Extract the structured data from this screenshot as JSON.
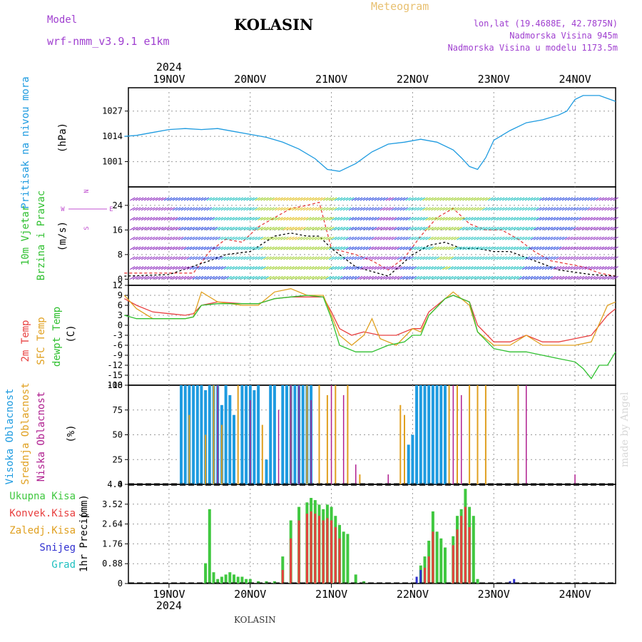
{
  "header": {
    "model_label": "Model",
    "model_name": "wrf-nmm_v3.9.1  e1km",
    "station": "KOLASIN",
    "title": "Meteogram",
    "lonlat": "lon,lat (19.4688E, 42.7875N)",
    "altitude": "Nadmorska Visina 945m",
    "altitude_model": "Nadmorska Visina u modelu 1173.5m",
    "credit": "made by Angel",
    "footer": "KOLASIN"
  },
  "colors": {
    "pressure": "#1e9be0",
    "temp": "#e84040",
    "sfc": "#e0a020",
    "dew": "#30c030",
    "high_cloud": "#1e9be0",
    "mid_cloud": "#e0a020",
    "low_cloud": "#b02090",
    "precip_total": "#40c840",
    "precip_conv": "#e84040",
    "snow": "#3030d0",
    "hail": "#20c0c0"
  },
  "chart_data": [
    {
      "type": "line",
      "panel": "pressure",
      "ylabel": [
        "Pritisak na nivou mora",
        "(hPa)"
      ],
      "ylim": [
        988,
        1039
      ],
      "yticks": [
        1001,
        1014,
        1027
      ],
      "x_top": {
        "year": "2024",
        "labels": [
          "19NOV",
          "20NOV",
          "21NOV",
          "22NOV",
          "23NOV",
          "24NOV"
        ]
      },
      "grid": true,
      "series": [
        {
          "x": [
            -0.55,
            -0.4,
            -0.2,
            0,
            0.2,
            0.4,
            0.6,
            0.8,
            1,
            1.2,
            1.4,
            1.6,
            1.8,
            1.95,
            2.1,
            2.3,
            2.5,
            2.7,
            2.9,
            3.1,
            3.3,
            3.5,
            3.6,
            3.7,
            3.8,
            3.9,
            4,
            4.2,
            4.4,
            4.6,
            4.8,
            4.9,
            5,
            5.1,
            5.2,
            5.3,
            5.5
          ],
          "values": [
            1014,
            1014.5,
            1016,
            1017.5,
            1018,
            1017.5,
            1018,
            1016.5,
            1015,
            1013.5,
            1011,
            1007.5,
            1002.5,
            997,
            996,
            1000,
            1006,
            1010,
            1011,
            1012.5,
            1011,
            1007,
            1003,
            998.5,
            997,
            1003,
            1012,
            1017,
            1021,
            1022.5,
            1025,
            1027,
            1033,
            1035,
            1035,
            1035,
            1032
          ]
        }
      ]
    },
    {
      "type": "line",
      "panel": "wind",
      "ylabel": [
        "10m Vjetar",
        "Brzina i Pravac",
        "(m/s)"
      ],
      "compass": {
        "n": "N",
        "w": "W",
        "e": "E",
        "s": "S"
      },
      "ylim": [
        -2,
        30
      ],
      "yticks": [
        0,
        8,
        16,
        24
      ],
      "grid": true,
      "series": [
        {
          "name": "gust",
          "x": [
            -0.55,
            -0.3,
            0,
            0.3,
            0.5,
            0.7,
            0.9,
            1.1,
            1.3,
            1.5,
            1.7,
            1.85,
            2,
            2.15,
            2.3,
            2.5,
            2.7,
            2.9,
            3.1,
            3.3,
            3.5,
            3.7,
            3.9,
            4.1,
            4.3,
            4.5,
            4.7,
            4.9,
            5.1,
            5.3,
            5.5
          ],
          "values": [
            2,
            2,
            2,
            2,
            9,
            13,
            12,
            17,
            20,
            23,
            24,
            25,
            10,
            9,
            8,
            6,
            3,
            7,
            14,
            20,
            23,
            18,
            16,
            16,
            13,
            9,
            6,
            5,
            4,
            2,
            1
          ]
        },
        {
          "name": "speed",
          "x": [
            -0.55,
            0,
            0.5,
            0.7,
            1,
            1.3,
            1.5,
            1.7,
            1.85,
            2,
            2.3,
            2.7,
            3,
            3.2,
            3.4,
            3.6,
            3.8,
            4,
            4.2,
            4.5,
            4.8,
            5.2,
            5.5
          ],
          "values": [
            1,
            1.5,
            6,
            8,
            9,
            14,
            15,
            14,
            14,
            10,
            4,
            1,
            8,
            11,
            12,
            10,
            10,
            9,
            9,
            6,
            3,
            1.5,
            1
          ]
        }
      ]
    },
    {
      "type": "line",
      "panel": "temperature",
      "ylabel": [
        "2m Temp",
        "SFC Temp",
        "dewpt Temp",
        "(C)"
      ],
      "ylim": [
        -18,
        12
      ],
      "yticks": [
        12,
        9,
        6,
        3,
        0,
        -3,
        -6,
        -9,
        -12,
        -15,
        -18
      ],
      "grid": true,
      "series": [
        {
          "name": "2m Temp",
          "x": [
            -0.55,
            -0.4,
            -0.2,
            0,
            0.2,
            0.3,
            0.4,
            0.6,
            0.9,
            1.1,
            1.3,
            1.5,
            1.7,
            1.9,
            2,
            2.1,
            2.25,
            2.4,
            2.6,
            2.8,
            3,
            3.1,
            3.2,
            3.4,
            3.5,
            3.7,
            3.8,
            4,
            4.2,
            4.4,
            4.6,
            4.8,
            5,
            5.2,
            5.4,
            5.5
          ],
          "values": [
            8,
            6,
            4,
            3.5,
            3,
            3.5,
            6,
            7,
            6.5,
            6.5,
            8,
            8.5,
            8.5,
            8.5,
            4,
            -1,
            -3,
            -2,
            -3,
            -3,
            -1,
            -1,
            4,
            8,
            9,
            7,
            0,
            -5,
            -5,
            -3,
            -5,
            -5,
            -4,
            -3,
            3,
            5
          ]
        },
        {
          "name": "SFC Temp",
          "x": [
            -0.55,
            -0.4,
            -0.2,
            0,
            0.2,
            0.3,
            0.4,
            0.6,
            0.9,
            1.1,
            1.3,
            1.5,
            1.7,
            1.9,
            2,
            2.1,
            2.25,
            2.4,
            2.5,
            2.6,
            2.8,
            3,
            3.1,
            3.2,
            3.4,
            3.5,
            3.7,
            3.8,
            4,
            4.2,
            4.4,
            4.6,
            4.8,
            5,
            5.2,
            5.4,
            5.5
          ],
          "values": [
            9,
            5,
            2,
            2,
            2,
            2.5,
            10,
            7,
            6,
            6,
            10,
            11,
            9,
            9,
            3,
            -3,
            -6,
            -3,
            2,
            -4,
            -6,
            -1,
            -2,
            3,
            8,
            10,
            6,
            -2,
            -6,
            -6,
            -3,
            -6,
            -6,
            -6,
            -5,
            6,
            7
          ]
        },
        {
          "name": "dewpt Temp",
          "x": [
            -0.55,
            -0.4,
            -0.2,
            0,
            0.2,
            0.3,
            0.4,
            0.6,
            0.9,
            1.1,
            1.3,
            1.5,
            1.7,
            1.9,
            2,
            2.1,
            2.3,
            2.5,
            2.7,
            2.9,
            3,
            3.1,
            3.2,
            3.4,
            3.5,
            3.7,
            3.8,
            4,
            4.2,
            4.4,
            4.6,
            4.8,
            5,
            5.1,
            5.2,
            5.3,
            5.4,
            5.5
          ],
          "values": [
            3,
            2,
            2,
            2,
            2,
            2.5,
            6,
            6.5,
            6.5,
            6.5,
            8,
            8.5,
            9,
            8.5,
            2,
            -6,
            -8,
            -8,
            -6,
            -5,
            -3,
            -3,
            3,
            8,
            9,
            7,
            -2,
            -7,
            -8,
            -8,
            -9,
            -10,
            -11,
            -13,
            -16,
            -12,
            -12,
            -8
          ]
        }
      ]
    },
    {
      "type": "bar",
      "panel": "clouds",
      "ylabel": [
        "Visoka Oblacnost",
        "Srednja Oblacnost",
        "Niska Oblacnost",
        "(%)"
      ],
      "ylim": [
        0,
        100
      ],
      "yticks": [
        0,
        25,
        50,
        75,
        100
      ],
      "grid": true,
      "series": [
        {
          "name": "Visoka Oblacnost",
          "x": [
            0.15,
            0.2,
            0.25,
            0.3,
            0.35,
            0.4,
            0.45,
            0.5,
            0.55,
            0.6,
            0.65,
            0.7,
            0.75,
            0.8,
            0.9,
            0.95,
            1.0,
            1.05,
            1.1,
            1.2,
            1.25,
            1.3,
            1.4,
            1.45,
            1.5,
            1.55,
            1.6,
            1.65,
            1.7,
            1.75,
            2.95,
            3.0,
            3.05,
            3.1,
            3.15,
            3.2,
            3.25,
            3.3,
            3.35,
            3.4
          ],
          "values": [
            100,
            100,
            100,
            100,
            100,
            100,
            95,
            100,
            100,
            100,
            80,
            100,
            90,
            70,
            100,
            100,
            100,
            95,
            100,
            25,
            100,
            100,
            100,
            100,
            100,
            100,
            100,
            100,
            100,
            100,
            40,
            50,
            100,
            100,
            100,
            100,
            100,
            100,
            100,
            100
          ]
        },
        {
          "name": "Srednja Oblacnost",
          "x": [
            0.25,
            0.45,
            0.55,
            0.65,
            0.85,
            1.15,
            1.5,
            1.7,
            1.85,
            1.95,
            2.05,
            2.2,
            2.35,
            2.85,
            2.9,
            3.45,
            3.55,
            3.7,
            3.8,
            3.9,
            4.3
          ],
          "values": [
            70,
            50,
            100,
            60,
            100,
            60,
            100,
            100,
            100,
            90,
            100,
            100,
            10,
            80,
            70,
            100,
            100,
            100,
            100,
            100,
            100
          ]
        },
        {
          "name": "Niska Oblacnost",
          "x": [
            0.6,
            1.0,
            1.35,
            1.5,
            1.6,
            1.75,
            2.0,
            2.15,
            2.3,
            2.7,
            3.5,
            3.6,
            4.4,
            5.0
          ],
          "values": [
            100,
            85,
            75,
            100,
            100,
            85,
            100,
            90,
            20,
            10,
            100,
            90,
            100,
            10
          ]
        }
      ]
    },
    {
      "type": "bar",
      "panel": "precip",
      "ylabel": [
        "1hr Precip",
        "(mm)"
      ],
      "legend": [
        "Ukupna  Kisa",
        "Konvek.Kisa",
        "Zaledj.Kisa",
        "Snijeg",
        "Grad"
      ],
      "ylim": [
        0,
        4.4
      ],
      "yticks": [
        0,
        0.88,
        1.76,
        2.64,
        3.52,
        4.4
      ],
      "x_bottom": {
        "year": "2024",
        "labels": [
          "19NOV",
          "20NOV",
          "21NOV",
          "22NOV",
          "23NOV",
          "24NOV"
        ]
      },
      "grid": true,
      "series": [
        {
          "name": "Ukupna  Kisa",
          "x": [
            0.45,
            0.5,
            0.55,
            0.6,
            0.65,
            0.7,
            0.75,
            0.8,
            0.85,
            0.9,
            0.95,
            1.0,
            1.1,
            1.2,
            1.3,
            1.4,
            1.5,
            1.6,
            1.7,
            1.75,
            1.8,
            1.85,
            1.9,
            1.95,
            2.0,
            2.05,
            2.1,
            2.15,
            2.2,
            2.3,
            2.4,
            3.1,
            3.15,
            3.2,
            3.25,
            3.3,
            3.35,
            3.4,
            3.5,
            3.55,
            3.6,
            3.65,
            3.7,
            3.75,
            3.8
          ],
          "values": [
            0.9,
            3.3,
            0.5,
            0.2,
            0.3,
            0.4,
            0.5,
            0.4,
            0.3,
            0.3,
            0.2,
            0.2,
            0.1,
            0.1,
            0.1,
            1.2,
            2.8,
            3.4,
            3.6,
            3.8,
            3.7,
            3.5,
            3.3,
            3.5,
            3.4,
            3.0,
            2.6,
            2.3,
            2.2,
            0.4,
            0.1,
            0.8,
            1.2,
            1.9,
            3.2,
            2.3,
            2.0,
            1.6,
            2.1,
            3.0,
            3.3,
            4.2,
            3.4,
            3.0,
            0.2
          ]
        },
        {
          "name": "Konvek.Kisa",
          "x": [
            1.4,
            1.5,
            1.6,
            1.7,
            1.75,
            1.8,
            1.85,
            1.9,
            1.95,
            2.0,
            2.05,
            2.1,
            3.15,
            3.2,
            3.25,
            3.5,
            3.55,
            3.6,
            3.65,
            3.7
          ],
          "values": [
            0.6,
            2.0,
            2.8,
            3.1,
            3.2,
            3.1,
            3.0,
            2.8,
            2.9,
            2.8,
            2.5,
            2.0,
            0.7,
            1.2,
            2.3,
            1.7,
            2.4,
            3.0,
            3.4,
            2.5
          ]
        },
        {
          "name": "Snijeg",
          "x": [
            3.05,
            3.1,
            4.2,
            4.25
          ],
          "values": [
            0.3,
            0.6,
            0.1,
            0.2
          ]
        }
      ]
    }
  ]
}
